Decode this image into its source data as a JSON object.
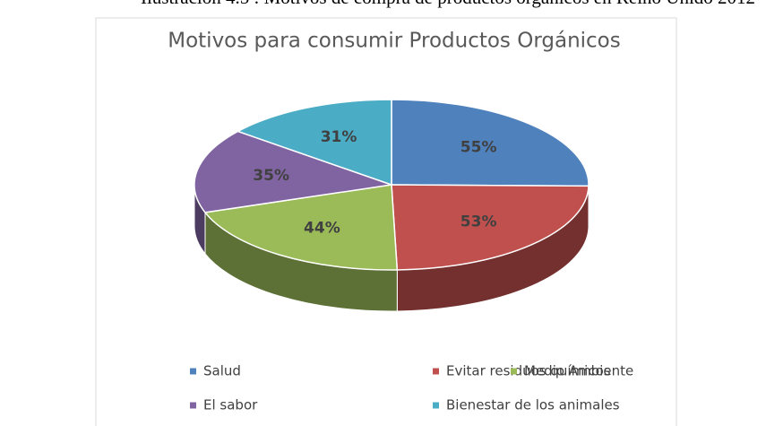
{
  "caption": "Ilustración 4.5 : Motivos de compra de productos orgánicos en Reino Unido 2012",
  "chart_data": {
    "type": "pie",
    "3d": true,
    "title": "Motivos para consumir Productos Orgánicos",
    "categories": [
      "Salud",
      "Evitar residuos químicos",
      "Medio Ambiente",
      "El sabor",
      "Bienestar de los animales"
    ],
    "values": [
      55,
      53,
      44,
      35,
      31
    ],
    "value_labels": [
      "55%",
      "53%",
      "44%",
      "35%",
      "31%"
    ],
    "colors": [
      "#4f81bd",
      "#c0504d",
      "#9bbb59",
      "#8064a2",
      "#4bacc6"
    ],
    "legend": "bottom"
  }
}
